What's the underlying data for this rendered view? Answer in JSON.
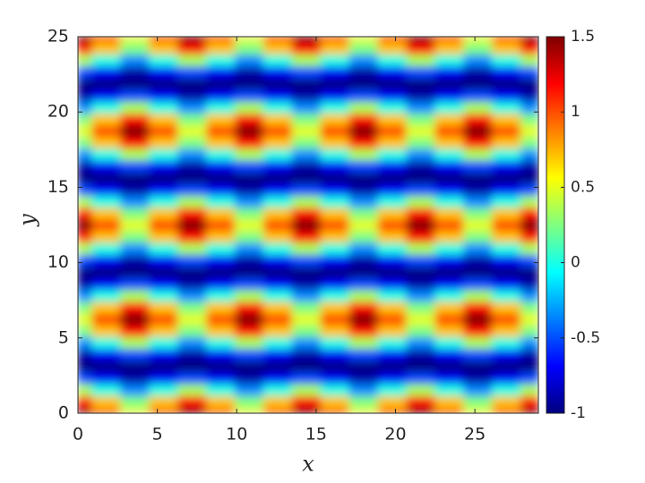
{
  "chart_data": {
    "type": "heatmap",
    "colormap": "jet",
    "xlabel": "x",
    "ylabel": "y",
    "x": [
      0,
      1.8,
      3.6,
      5.4,
      7.2,
      9,
      10.8,
      12.6,
      14.4,
      16.2,
      18,
      19.8,
      21.6,
      23.4,
      25.2,
      27,
      28.8
    ],
    "y": [
      0,
      0.78125,
      1.5625,
      2.34375,
      3.125,
      3.90625,
      4.6875,
      5.46875,
      6.25,
      7.03125,
      7.8125,
      8.59375,
      9.375,
      10.15625,
      10.9375,
      11.71875,
      12.5,
      13.28125,
      14.0625,
      14.84375,
      15.625,
      16.40625,
      17.1875,
      17.96875,
      18.75,
      19.53125,
      20.3125,
      21.09375,
      21.875,
      22.65625,
      23.4375,
      24.21875,
      25
    ],
    "z": [
      [
        1.5,
        1,
        0.5,
        1,
        1.5,
        1,
        0.5,
        1,
        1.5,
        1,
        0.5,
        1,
        1.5,
        1,
        0.5,
        1,
        1.5
      ],
      [
        1.17,
        0.71,
        0.25,
        0.71,
        1.17,
        0.71,
        0.25,
        0.71,
        1.17,
        0.71,
        0.25,
        0.71,
        1.17,
        0.71,
        0.25,
        0.71,
        1.17
      ],
      [
        0.35,
        0,
        -0.35,
        0,
        0.35,
        0,
        -0.35,
        0,
        0.35,
        0,
        -0.35,
        0,
        0.35,
        0,
        -0.35,
        0,
        0.35
      ],
      [
        -0.52,
        -0.71,
        -0.9,
        -0.71,
        -0.52,
        -0.71,
        -0.9,
        -0.71,
        -0.52,
        -0.71,
        -0.9,
        -0.71,
        -0.52,
        -0.71,
        -0.9,
        -0.71,
        -0.52
      ],
      [
        -1,
        -1,
        -1,
        -1,
        -1,
        -1,
        -1,
        -1,
        -1,
        -1,
        -1,
        -1,
        -1,
        -1,
        -1,
        -1,
        -1
      ],
      [
        -0.9,
        -0.71,
        -0.52,
        -0.71,
        -0.9,
        -0.71,
        -0.52,
        -0.71,
        -0.9,
        -0.71,
        -0.52,
        -0.71,
        -0.9,
        -0.71,
        -0.52,
        -0.71,
        -0.9
      ],
      [
        -0.35,
        0,
        0.35,
        0,
        -0.35,
        0,
        0.35,
        0,
        -0.35,
        0,
        0.35,
        0,
        -0.35,
        0,
        0.35,
        0,
        -0.35
      ],
      [
        0.25,
        0.71,
        1.17,
        0.71,
        0.25,
        0.71,
        1.17,
        0.71,
        0.25,
        0.71,
        1.17,
        0.71,
        0.25,
        0.71,
        1.17,
        0.71,
        0.25
      ],
      [
        0.5,
        1,
        1.5,
        1,
        0.5,
        1,
        1.5,
        1,
        0.5,
        1,
        1.5,
        1,
        0.5,
        1,
        1.5,
        1,
        0.5
      ],
      [
        0.25,
        0.71,
        1.17,
        0.71,
        0.25,
        0.71,
        1.17,
        0.71,
        0.25,
        0.71,
        1.17,
        0.71,
        0.25,
        0.71,
        1.17,
        0.71,
        0.25
      ],
      [
        -0.35,
        0,
        0.35,
        0,
        -0.35,
        0,
        0.35,
        0,
        -0.35,
        0,
        0.35,
        0,
        -0.35,
        0,
        0.35,
        0,
        -0.35
      ],
      [
        -0.9,
        -0.71,
        -0.52,
        -0.71,
        -0.9,
        -0.71,
        -0.52,
        -0.71,
        -0.9,
        -0.71,
        -0.52,
        -0.71,
        -0.9,
        -0.71,
        -0.52,
        -0.71,
        -0.9
      ],
      [
        -1,
        -1,
        -1,
        -1,
        -1,
        -1,
        -1,
        -1,
        -1,
        -1,
        -1,
        -1,
        -1,
        -1,
        -1,
        -1,
        -1
      ],
      [
        -0.52,
        -0.71,
        -0.9,
        -0.71,
        -0.52,
        -0.71,
        -0.9,
        -0.71,
        -0.52,
        -0.71,
        -0.9,
        -0.71,
        -0.52,
        -0.71,
        -0.9,
        -0.71,
        -0.52
      ],
      [
        0.35,
        0,
        -0.35,
        0,
        0.35,
        0,
        -0.35,
        0,
        0.35,
        0,
        -0.35,
        0,
        0.35,
        0,
        -0.35,
        0,
        0.35
      ],
      [
        1.17,
        0.71,
        0.25,
        0.71,
        1.17,
        0.71,
        0.25,
        0.71,
        1.17,
        0.71,
        0.25,
        0.71,
        1.17,
        0.71,
        0.25,
        0.71,
        1.17
      ],
      [
        1.5,
        1,
        0.5,
        1,
        1.5,
        1,
        0.5,
        1,
        1.5,
        1,
        0.5,
        1,
        1.5,
        1,
        0.5,
        1,
        1.5
      ],
      [
        1.17,
        0.71,
        0.25,
        0.71,
        1.17,
        0.71,
        0.25,
        0.71,
        1.17,
        0.71,
        0.25,
        0.71,
        1.17,
        0.71,
        0.25,
        0.71,
        1.17
      ],
      [
        0.35,
        0,
        -0.35,
        0,
        0.35,
        0,
        -0.35,
        0,
        0.35,
        0,
        -0.35,
        0,
        0.35,
        0,
        -0.35,
        0,
        0.35
      ],
      [
        -0.52,
        -0.71,
        -0.9,
        -0.71,
        -0.52,
        -0.71,
        -0.9,
        -0.71,
        -0.52,
        -0.71,
        -0.9,
        -0.71,
        -0.52,
        -0.71,
        -0.9,
        -0.71,
        -0.52
      ],
      [
        -1,
        -1,
        -1,
        -1,
        -1,
        -1,
        -1,
        -1,
        -1,
        -1,
        -1,
        -1,
        -1,
        -1,
        -1,
        -1,
        -1
      ],
      [
        -0.9,
        -0.71,
        -0.52,
        -0.71,
        -0.9,
        -0.71,
        -0.52,
        -0.71,
        -0.9,
        -0.71,
        -0.52,
        -0.71,
        -0.9,
        -0.71,
        -0.52,
        -0.71,
        -0.9
      ],
      [
        -0.35,
        0,
        0.35,
        0,
        -0.35,
        0,
        0.35,
        0,
        -0.35,
        0,
        0.35,
        0,
        -0.35,
        0,
        0.35,
        0,
        -0.35
      ],
      [
        0.25,
        0.71,
        1.17,
        0.71,
        0.25,
        0.71,
        1.17,
        0.71,
        0.25,
        0.71,
        1.17,
        0.71,
        0.25,
        0.71,
        1.17,
        0.71,
        0.25
      ],
      [
        0.5,
        1,
        1.5,
        1,
        0.5,
        1,
        1.5,
        1,
        0.5,
        1,
        1.5,
        1,
        0.5,
        1,
        1.5,
        1,
        0.5
      ],
      [
        0.25,
        0.71,
        1.17,
        0.71,
        0.25,
        0.71,
        1.17,
        0.71,
        0.25,
        0.71,
        1.17,
        0.71,
        0.25,
        0.71,
        1.17,
        0.71,
        0.25
      ],
      [
        -0.35,
        0,
        0.35,
        0,
        -0.35,
        0,
        0.35,
        0,
        -0.35,
        0,
        0.35,
        0,
        -0.35,
        0,
        0.35,
        0,
        -0.35
      ],
      [
        -0.9,
        -0.71,
        -0.52,
        -0.71,
        -0.9,
        -0.71,
        -0.52,
        -0.71,
        -0.9,
        -0.71,
        -0.52,
        -0.71,
        -0.9,
        -0.71,
        -0.52,
        -0.71,
        -0.9
      ],
      [
        -1,
        -1,
        -1,
        -1,
        -1,
        -1,
        -1,
        -1,
        -1,
        -1,
        -1,
        -1,
        -1,
        -1,
        -1,
        -1,
        -1
      ],
      [
        -0.52,
        -0.71,
        -0.9,
        -0.71,
        -0.52,
        -0.71,
        -0.9,
        -0.71,
        -0.52,
        -0.71,
        -0.9,
        -0.71,
        -0.52,
        -0.71,
        -0.9,
        -0.71,
        -0.52
      ],
      [
        0.35,
        0,
        -0.35,
        0,
        0.35,
        0,
        -0.35,
        0,
        0.35,
        0,
        -0.35,
        0,
        0.35,
        0,
        -0.35,
        0,
        0.35
      ],
      [
        1.17,
        0.71,
        0.25,
        0.71,
        1.17,
        0.71,
        0.25,
        0.71,
        1.17,
        0.71,
        0.25,
        0.71,
        1.17,
        0.71,
        0.25,
        0.71,
        1.17
      ],
      [
        1.5,
        1,
        0.5,
        1,
        1.5,
        1,
        0.5,
        1,
        1.5,
        1,
        0.5,
        1,
        1.5,
        1,
        0.5,
        1,
        1.5
      ]
    ],
    "xlim": [
      0,
      29
    ],
    "ylim": [
      0,
      25
    ],
    "xticks": [
      0,
      5,
      10,
      15,
      20,
      25
    ],
    "yticks": [
      0,
      5,
      10,
      15,
      20,
      25
    ],
    "clim": [
      -1,
      1.5
    ],
    "colorbar_ticks": [
      -1,
      -0.5,
      0,
      0.5,
      1,
      1.5
    ]
  }
}
